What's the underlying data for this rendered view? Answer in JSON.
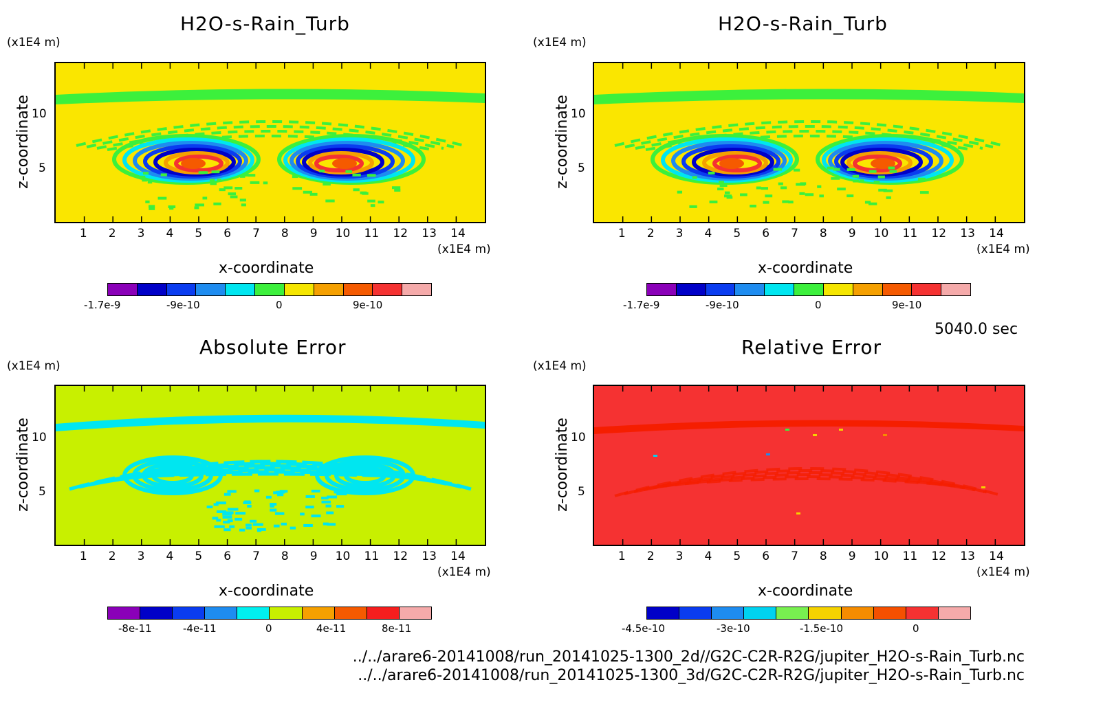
{
  "chart_data": [
    {
      "type": "heatmap",
      "title": "H2O-s-Rain_Turb",
      "xlabel": "x-coordinate",
      "ylabel": "z-coordinate",
      "x_unit": "(x1E4 m)",
      "y_unit": "(x1E4 m)",
      "xticks": [
        "1",
        "2",
        "3",
        "4",
        "5",
        "6",
        "7",
        "8",
        "9",
        "10",
        "11",
        "12",
        "13",
        "14"
      ],
      "yticks": [
        "5",
        "10"
      ],
      "xlim": [
        0,
        15
      ],
      "ylim": [
        0,
        15
      ],
      "colorbar": {
        "colors": [
          "#8a00b8",
          "#0000c8",
          "#0a3cf0",
          "#1e8cf0",
          "#00e6f0",
          "#3cf03c",
          "#f5e600",
          "#f5a000",
          "#f55a00",
          "#f53232",
          "#f5aaaa"
        ],
        "tick_labels": [
          "-1.7e-9",
          "-9e-10",
          "0",
          "9e-10"
        ]
      },
      "background": "#fae600",
      "band_color": "#3cf03c"
    },
    {
      "type": "heatmap",
      "title": "H2O-s-Rain_Turb",
      "xlabel": "x-coordinate",
      "ylabel": "z-coordinate",
      "x_unit": "(x1E4 m)",
      "y_unit": "(x1E4 m)",
      "xticks": [
        "1",
        "2",
        "3",
        "4",
        "5",
        "6",
        "7",
        "8",
        "9",
        "10",
        "11",
        "12",
        "13",
        "14"
      ],
      "yticks": [
        "5",
        "10"
      ],
      "xlim": [
        0,
        15
      ],
      "ylim": [
        0,
        15
      ],
      "colorbar": {
        "colors": [
          "#8a00b8",
          "#0000c8",
          "#0a3cf0",
          "#1e8cf0",
          "#00e6f0",
          "#3cf03c",
          "#f5e600",
          "#f5a000",
          "#f55a00",
          "#f53232",
          "#f5aaaa"
        ],
        "tick_labels": [
          "-1.7e-9",
          "-9e-10",
          "0",
          "9e-10"
        ]
      },
      "background": "#fae600",
      "band_color": "#3cf03c"
    },
    {
      "type": "heatmap",
      "title": "Absolute Error",
      "xlabel": "x-coordinate",
      "ylabel": "z-coordinate",
      "x_unit": "(x1E4 m)",
      "y_unit": "(x1E4 m)",
      "xticks": [
        "1",
        "2",
        "3",
        "4",
        "5",
        "6",
        "7",
        "8",
        "9",
        "10",
        "11",
        "12",
        "13",
        "14"
      ],
      "yticks": [
        "5",
        "10"
      ],
      "xlim": [
        0,
        15
      ],
      "ylim": [
        0,
        15
      ],
      "colorbar": {
        "colors": [
          "#8a00b8",
          "#0000c8",
          "#0a3cf0",
          "#1e8cf0",
          "#00f0f0",
          "#c8f000",
          "#f5a000",
          "#f55a00",
          "#f51e1e",
          "#f5aaaa"
        ],
        "tick_labels": [
          "-8e-11",
          "-4e-11",
          "0",
          "4e-11",
          "8e-11"
        ]
      },
      "background": "#c8f000",
      "band_color": "#00e6f0"
    },
    {
      "type": "heatmap",
      "title": "Relative Error",
      "xlabel": "x-coordinate",
      "ylabel": "z-coordinate",
      "x_unit": "(x1E4 m)",
      "y_unit": "(x1E4 m)",
      "xticks": [
        "1",
        "2",
        "3",
        "4",
        "5",
        "6",
        "7",
        "8",
        "9",
        "10",
        "11",
        "12",
        "13",
        "14"
      ],
      "yticks": [
        "5",
        "10"
      ],
      "xlim": [
        0,
        15
      ],
      "ylim": [
        0,
        15
      ],
      "colorbar": {
        "colors": [
          "#0000c8",
          "#0a3cf0",
          "#1e8cf0",
          "#00d2f0",
          "#78f050",
          "#f5d200",
          "#f58c00",
          "#f55000",
          "#f53232",
          "#f5aaaa"
        ],
        "tick_labels": [
          "-4.5e-10",
          "-3e-10",
          "-1.5e-10",
          "0"
        ]
      },
      "background": "#f53232",
      "band_color": "#f51e00"
    }
  ],
  "timestamp": "5040.0 sec",
  "footer": {
    "line1": "../../arare6-20141008/run_20141025-1300_2d//G2C-C2R-R2G/jupiter_H2O-s-Rain_Turb.nc",
    "line2": "../../arare6-20141008/run_20141025-1300_3d/G2C-C2R-R2G/jupiter_H2O-s-Rain_Turb.nc"
  }
}
